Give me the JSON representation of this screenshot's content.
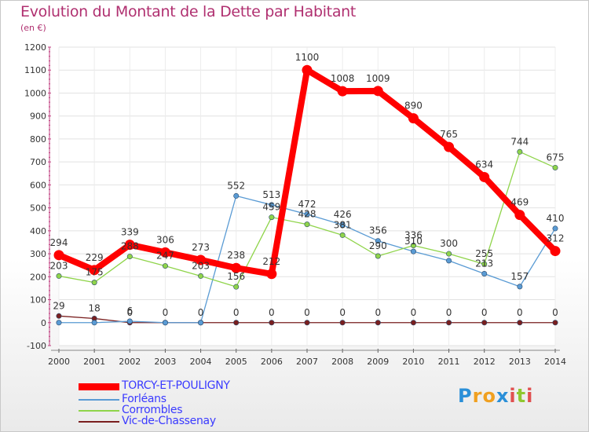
{
  "chart_data": {
    "type": "line",
    "title": "Evolution du Montant de la Dette par Habitant",
    "unit_label": "(en €)",
    "xlabel": "",
    "ylabel": "",
    "ylim": [
      -100,
      1200
    ],
    "y_ticks": [
      -100,
      0,
      100,
      200,
      300,
      400,
      500,
      600,
      700,
      800,
      900,
      1000,
      1100,
      1200
    ],
    "categories": [
      "2000",
      "2001",
      "2002",
      "2003",
      "2004",
      "2005",
      "2006",
      "2007",
      "2008",
      "2009",
      "2010",
      "2011",
      "2012",
      "2013",
      "2014"
    ],
    "grid": true,
    "legend_position": "bottom-left",
    "series": [
      {
        "name": "TORCY-ET-POULIGNY",
        "color": "#ff0000",
        "values": [
          294,
          229,
          339,
          306,
          273,
          238,
          212,
          1100,
          1008,
          1009,
          890,
          765,
          634,
          469,
          312
        ]
      },
      {
        "name": "Forléans",
        "color": "#5a9bd4",
        "values": [
          0,
          0,
          6,
          0,
          0,
          552,
          513,
          472,
          426,
          356,
          310,
          270,
          213,
          157,
          410
        ]
      },
      {
        "name": "Corrombles",
        "color": "#8fd44a",
        "values": [
          203,
          175,
          288,
          247,
          203,
          156,
          459,
          428,
          381,
          290,
          336,
          300,
          255,
          744,
          675
        ]
      },
      {
        "name": "Vic-de-Chassenay",
        "color": "#7a1f1f",
        "values": [
          29,
          18,
          0,
          0,
          0,
          0,
          0,
          0,
          0,
          0,
          0,
          0,
          0,
          0,
          0
        ]
      }
    ],
    "labels": {
      "TORCY-ET-POULIGNY": [
        "294",
        "229",
        "339",
        "306",
        "273",
        "238",
        "212",
        "1100",
        "1008",
        "1009",
        "890",
        "765",
        "634",
        "469",
        "312"
      ],
      "Forléans": [
        "",
        "",
        "6",
        "",
        "",
        "552",
        "513",
        "472",
        "426",
        "356",
        "310",
        "",
        "213",
        "157",
        "410"
      ],
      "Corrombles": [
        "203",
        "175",
        "288",
        "247",
        "203",
        "156",
        "459",
        "428",
        "381",
        "290",
        "336",
        "300",
        "255",
        "744",
        "675"
      ],
      "Vic-de-Chassenay": [
        "29",
        "18",
        "0",
        "0",
        "0",
        "0",
        "0",
        "0",
        "0",
        "0",
        "0",
        "0",
        "0",
        "0",
        "0"
      ]
    }
  },
  "legend": {
    "items": [
      {
        "label": "TORCY-ET-POULIGNY",
        "color": "#ff0000"
      },
      {
        "label": "Forléans",
        "color": "#5a9bd4"
      },
      {
        "label": "Corrombles",
        "color": "#8fd44a"
      },
      {
        "label": "Vic-de-Chassenay",
        "color": "#7a1f1f"
      }
    ]
  },
  "logo": {
    "letters": [
      "P",
      "r",
      "o",
      "x",
      "i",
      "t",
      "i"
    ],
    "colors": [
      "#2a8fd8",
      "#f0a020",
      "#f0a020",
      "#2a8fd8",
      "#e05050",
      "#8fc830",
      "#e05050"
    ]
  }
}
